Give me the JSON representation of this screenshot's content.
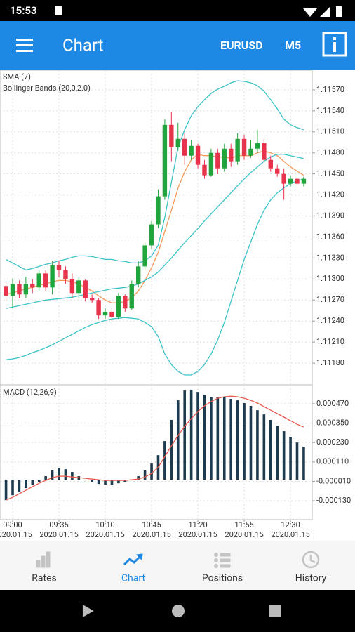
{
  "status_bar": {
    "time": "15:53"
  },
  "app_bar": {
    "title": "Chart",
    "symbol": "EURUSD",
    "timeframe": "M5"
  },
  "chart_data": [
    {
      "type": "candlestick",
      "up_color": "#22a43c",
      "down_color": "#e8334d",
      "xlim": [
        -0.91,
        46.28
      ],
      "ylim": [
        1.11149,
        1.11598
      ],
      "grid": true,
      "yticks": [
        {
          "value": 1.1157,
          "label": "1.11570"
        },
        {
          "value": 1.1154,
          "label": "1.11540"
        },
        {
          "value": 1.1151,
          "label": "1.11510"
        },
        {
          "value": 1.1148,
          "label": "1.11480"
        },
        {
          "value": 1.1145,
          "label": "1.11450"
        },
        {
          "value": 1.1142,
          "label": "1.11420"
        },
        {
          "value": 1.1139,
          "label": "1.11390"
        },
        {
          "value": 1.1136,
          "label": "1.11360"
        },
        {
          "value": 1.1133,
          "label": "1.11330"
        },
        {
          "value": 1.113,
          "label": "1.11300"
        },
        {
          "value": 1.1127,
          "label": "1.11270"
        },
        {
          "value": 1.1124,
          "label": "1.11240"
        },
        {
          "value": 1.1121,
          "label": "1.11210"
        },
        {
          "value": 1.1118,
          "label": "1.11180"
        }
      ],
      "open": [
        1.1129,
        1.11276,
        1.11293,
        1.11278,
        1.11293,
        1.11288,
        1.11308,
        1.11288,
        1.1132,
        1.11313,
        1.113,
        1.1128,
        1.11298,
        1.11273,
        1.1127,
        1.11248,
        1.11253,
        1.11246,
        1.11276,
        1.11258,
        1.11293,
        1.11318,
        1.11348,
        1.11378,
        1.11418,
        1.1152,
        1.11488,
        1.115,
        1.11476,
        1.1149,
        1.11463,
        1.11448,
        1.1148,
        1.11458,
        1.11486,
        1.11468,
        1.115,
        1.11476,
        1.11486,
        1.11494,
        1.1147,
        1.11458,
        1.1145,
        1.11436,
        1.11443,
        1.11436
      ],
      "close": [
        1.11276,
        1.11293,
        1.11278,
        1.11293,
        1.11288,
        1.11308,
        1.11288,
        1.1132,
        1.11313,
        1.113,
        1.1128,
        1.11298,
        1.11273,
        1.1127,
        1.11248,
        1.11253,
        1.11246,
        1.11276,
        1.11258,
        1.11293,
        1.11318,
        1.11348,
        1.11378,
        1.11418,
        1.1152,
        1.11488,
        1.115,
        1.11476,
        1.1149,
        1.11463,
        1.11448,
        1.1148,
        1.11458,
        1.11486,
        1.11468,
        1.115,
        1.11476,
        1.11486,
        1.11494,
        1.1147,
        1.11458,
        1.1145,
        1.11436,
        1.11443,
        1.11436,
        1.11443
      ],
      "high": [
        1.11296,
        1.113,
        1.11298,
        1.11303,
        1.113,
        1.11313,
        1.11313,
        1.11326,
        1.11326,
        1.11318,
        1.11308,
        1.11303,
        1.113,
        1.11278,
        1.11273,
        1.11258,
        1.11258,
        1.1128,
        1.11278,
        1.11298,
        1.11326,
        1.11353,
        1.11383,
        1.11428,
        1.11528,
        1.11538,
        1.11523,
        1.11508,
        1.11498,
        1.11493,
        1.1147,
        1.11486,
        1.11486,
        1.11493,
        1.11493,
        1.11508,
        1.11506,
        1.11498,
        1.11513,
        1.115,
        1.11476,
        1.11463,
        1.11458,
        1.11448,
        1.11448,
        1.11446
      ],
      "low": [
        1.11268,
        1.11258,
        1.11273,
        1.11273,
        1.1128,
        1.11283,
        1.11283,
        1.11278,
        1.11303,
        1.11293,
        1.11273,
        1.11273,
        1.11268,
        1.11266,
        1.11243,
        1.11243,
        1.1124,
        1.11243,
        1.11253,
        1.11256,
        1.11288,
        1.11313,
        1.11343,
        1.11373,
        1.11413,
        1.11468,
        1.11483,
        1.11463,
        1.1147,
        1.11458,
        1.11443,
        1.11446,
        1.1145,
        1.11453,
        1.1146,
        1.11463,
        1.1147,
        1.11473,
        1.1148,
        1.11466,
        1.11453,
        1.11446,
        1.11413,
        1.11432,
        1.1143,
        1.11432
      ],
      "series": [
        {
          "name": "SMA (7)",
          "color": "#f39a5c",
          "values": [
            1.11278,
            1.1128,
            1.11283,
            1.11286,
            1.11288,
            1.11291,
            1.11293,
            1.11296,
            1.11298,
            1.11298,
            1.11296,
            1.11293,
            1.11288,
            1.11283,
            1.11276,
            1.1127,
            1.11266,
            1.11266,
            1.11268,
            1.11273,
            1.11283,
            1.11298,
            1.11316,
            1.11338,
            1.11368,
            1.11398,
            1.1143,
            1.11453,
            1.1147,
            1.11478,
            1.11476,
            1.11476,
            1.11474,
            1.11474,
            1.11472,
            1.11476,
            1.11476,
            1.11476,
            1.1148,
            1.11483,
            1.1148,
            1.11476,
            1.11468,
            1.1146,
            1.11454,
            1.11448
          ]
        },
        {
          "name": "Bollinger Bands (20,0,2.0)",
          "color": "#3cc3c8",
          "upper": [
            1.11328,
            1.11323,
            1.11318,
            1.11313,
            1.11315,
            1.11318,
            1.11321,
            1.11323,
            1.11326,
            1.11328,
            1.11331,
            1.11333,
            1.11333,
            1.11332,
            1.1133,
            1.11328,
            1.11328,
            1.11326,
            1.11325,
            1.11323,
            1.11323,
            1.11326,
            1.11333,
            1.11348,
            1.11388,
            1.11438,
            1.11488,
            1.11513,
            1.11533,
            1.11546,
            1.11556,
            1.11565,
            1.11571,
            1.11575,
            1.1158,
            1.11583,
            1.11582,
            1.1158,
            1.11576,
            1.11568,
            1.11556,
            1.11543,
            1.11528,
            1.1152,
            1.11516,
            1.11513
          ],
          "values": [
            1.11258,
            1.1126,
            1.11262,
            1.11264,
            1.11266,
            1.11268,
            1.1127,
            1.11271,
            1.11272,
            1.11273,
            1.11274,
            1.11276,
            1.11278,
            1.1128,
            1.11282,
            1.11284,
            1.11286,
            1.11287,
            1.11288,
            1.1129,
            1.11293,
            1.11298,
            1.11303,
            1.1131,
            1.1132,
            1.1133,
            1.11341,
            1.11352,
            1.11362,
            1.11372,
            1.11383,
            1.11393,
            1.11403,
            1.11413,
            1.11423,
            1.11433,
            1.11443,
            1.11452,
            1.1146,
            1.11468,
            1.11474,
            1.11478,
            1.11478,
            1.11476,
            1.11474,
            1.11472
          ],
          "lower": [
            1.11185,
            1.11186,
            1.11188,
            1.11191,
            1.11195,
            1.11198,
            1.11202,
            1.11206,
            1.11211,
            1.11216,
            1.11221,
            1.11226,
            1.11231,
            1.11235,
            1.11238,
            1.11241,
            1.11243,
            1.11244,
            1.11245,
            1.11244,
            1.11243,
            1.11238,
            1.11232,
            1.11218,
            1.11193,
            1.11178,
            1.11168,
            1.11163,
            1.11163,
            1.11168,
            1.11178,
            1.11193,
            1.11213,
            1.11238,
            1.11268,
            1.11298,
            1.11328,
            1.11353,
            1.11378,
            1.11398,
            1.11413,
            1.11423,
            1.1143,
            1.11436,
            1.1144,
            1.11443
          ]
        }
      ]
    },
    {
      "type": "macd",
      "title": "MACD (12,26,9)",
      "xlim": [
        -0.91,
        46.28
      ],
      "ylim": [
        -0.000247,
        0.000587
      ],
      "grid": true,
      "yticks": [
        {
          "value": 0.00047,
          "label": "0.000470"
        },
        {
          "value": 0.00035,
          "label": "0.000350"
        },
        {
          "value": 0.00023,
          "label": "0.000230"
        },
        {
          "value": 0.00011,
          "label": "0.000110"
        },
        {
          "value": -1e-05,
          "label": "-0.000010"
        },
        {
          "value": -0.00013,
          "label": "-0.000130"
        }
      ],
      "xticks": [
        {
          "value": 1,
          "label": "09:00",
          "date": "2020.01.15"
        },
        {
          "value": 8,
          "label": "09:35",
          "date": "2020.01.15"
        },
        {
          "value": 15,
          "label": "10:10",
          "date": "2020.01.15"
        },
        {
          "value": 22,
          "label": "10:45",
          "date": "2020.01.15"
        },
        {
          "value": 29,
          "label": "11:20",
          "date": "2020.01.15"
        },
        {
          "value": 36,
          "label": "11:55",
          "date": "2020.01.15"
        },
        {
          "value": 43,
          "label": "12:30",
          "date": "2020.01.15"
        }
      ],
      "histogram": {
        "color": "#1d3a4f",
        "values": [
          -0.000126,
          -9.6e-05,
          -7.4e-05,
          -5.2e-05,
          -3e-05,
          -1.3e-05,
          2.2e-05,
          5.7e-05,
          7e-05,
          6.5e-05,
          4.8e-05,
          2.2e-05,
          -4e-06,
          -1.3e-05,
          -2.6e-05,
          -3e-05,
          -3e-05,
          -2.2e-05,
          -1.3e-05,
          -4e-06,
          2.2e-05,
          5.7e-05,
          0.0001,
          0.000152,
          0.000239,
          0.00037,
          0.000491,
          0.000552,
          0.000557,
          0.000543,
          0.000526,
          0.000513,
          0.000509,
          0.000509,
          0.0005,
          0.000491,
          0.000474,
          0.000457,
          0.00043,
          0.000404,
          0.00037,
          0.000335,
          0.0003,
          0.000265,
          0.00023,
          0.000204
        ]
      },
      "signal": {
        "color": "#e85a50",
        "values": [
          -0.000126,
          -0.000109,
          -8.7e-05,
          -6.5e-05,
          -4.3e-05,
          -2.2e-05,
          -4e-06,
          1.3e-05,
          2.2e-05,
          2.2e-05,
          1.7e-05,
          1.3e-05,
          9e-06,
          4e-06,
          0,
          -4e-06,
          -4e-06,
          -4e-06,
          -4e-06,
          0,
          4e-06,
          1.7e-05,
          3.9e-05,
          7.8e-05,
          0.000143,
          0.000209,
          0.000274,
          0.00033,
          0.000378,
          0.000422,
          0.000457,
          0.000483,
          0.000504,
          0.000513,
          0.000517,
          0.000513,
          0.000504,
          0.000491,
          0.000474,
          0.000452,
          0.00043,
          0.000409,
          0.000387,
          0.000365,
          0.000343,
          0.000326
        ]
      }
    }
  ],
  "nav": {
    "tabs": [
      "Rates",
      "Chart",
      "Positions",
      "History"
    ],
    "active": 1,
    "active_color": "#1e88e5",
    "color": "#666666"
  }
}
